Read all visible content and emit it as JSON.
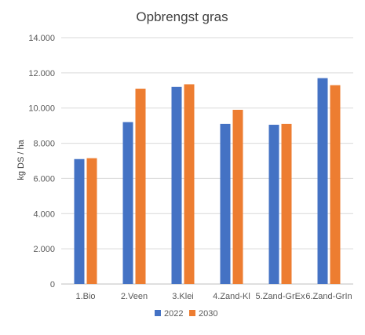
{
  "chart_data": {
    "type": "bar",
    "title": "Opbrengst gras",
    "xlabel": "",
    "ylabel": "kg DS / ha",
    "ylim": [
      0,
      14000
    ],
    "yticks": [
      0,
      2000,
      4000,
      6000,
      8000,
      10000,
      12000,
      14000
    ],
    "ytick_labels": [
      "0",
      "2.000",
      "4.000",
      "6.000",
      "8.000",
      "10.000",
      "12.000",
      "14.000"
    ],
    "grid": true,
    "legend_position": "bottom",
    "categories": [
      "1.Bio",
      "2.Veen",
      "3.Klei",
      "4.Zand-Kl",
      "5.Zand-GrEx",
      "6.Zand-GrIn"
    ],
    "series": [
      {
        "name": "2022",
        "color": "#4472C4",
        "values": [
          7100,
          9200,
          11200,
          9100,
          9050,
          11700
        ]
      },
      {
        "name": "2030",
        "color": "#ED7D31",
        "values": [
          7150,
          11100,
          11350,
          9900,
          9100,
          11300
        ]
      }
    ]
  }
}
